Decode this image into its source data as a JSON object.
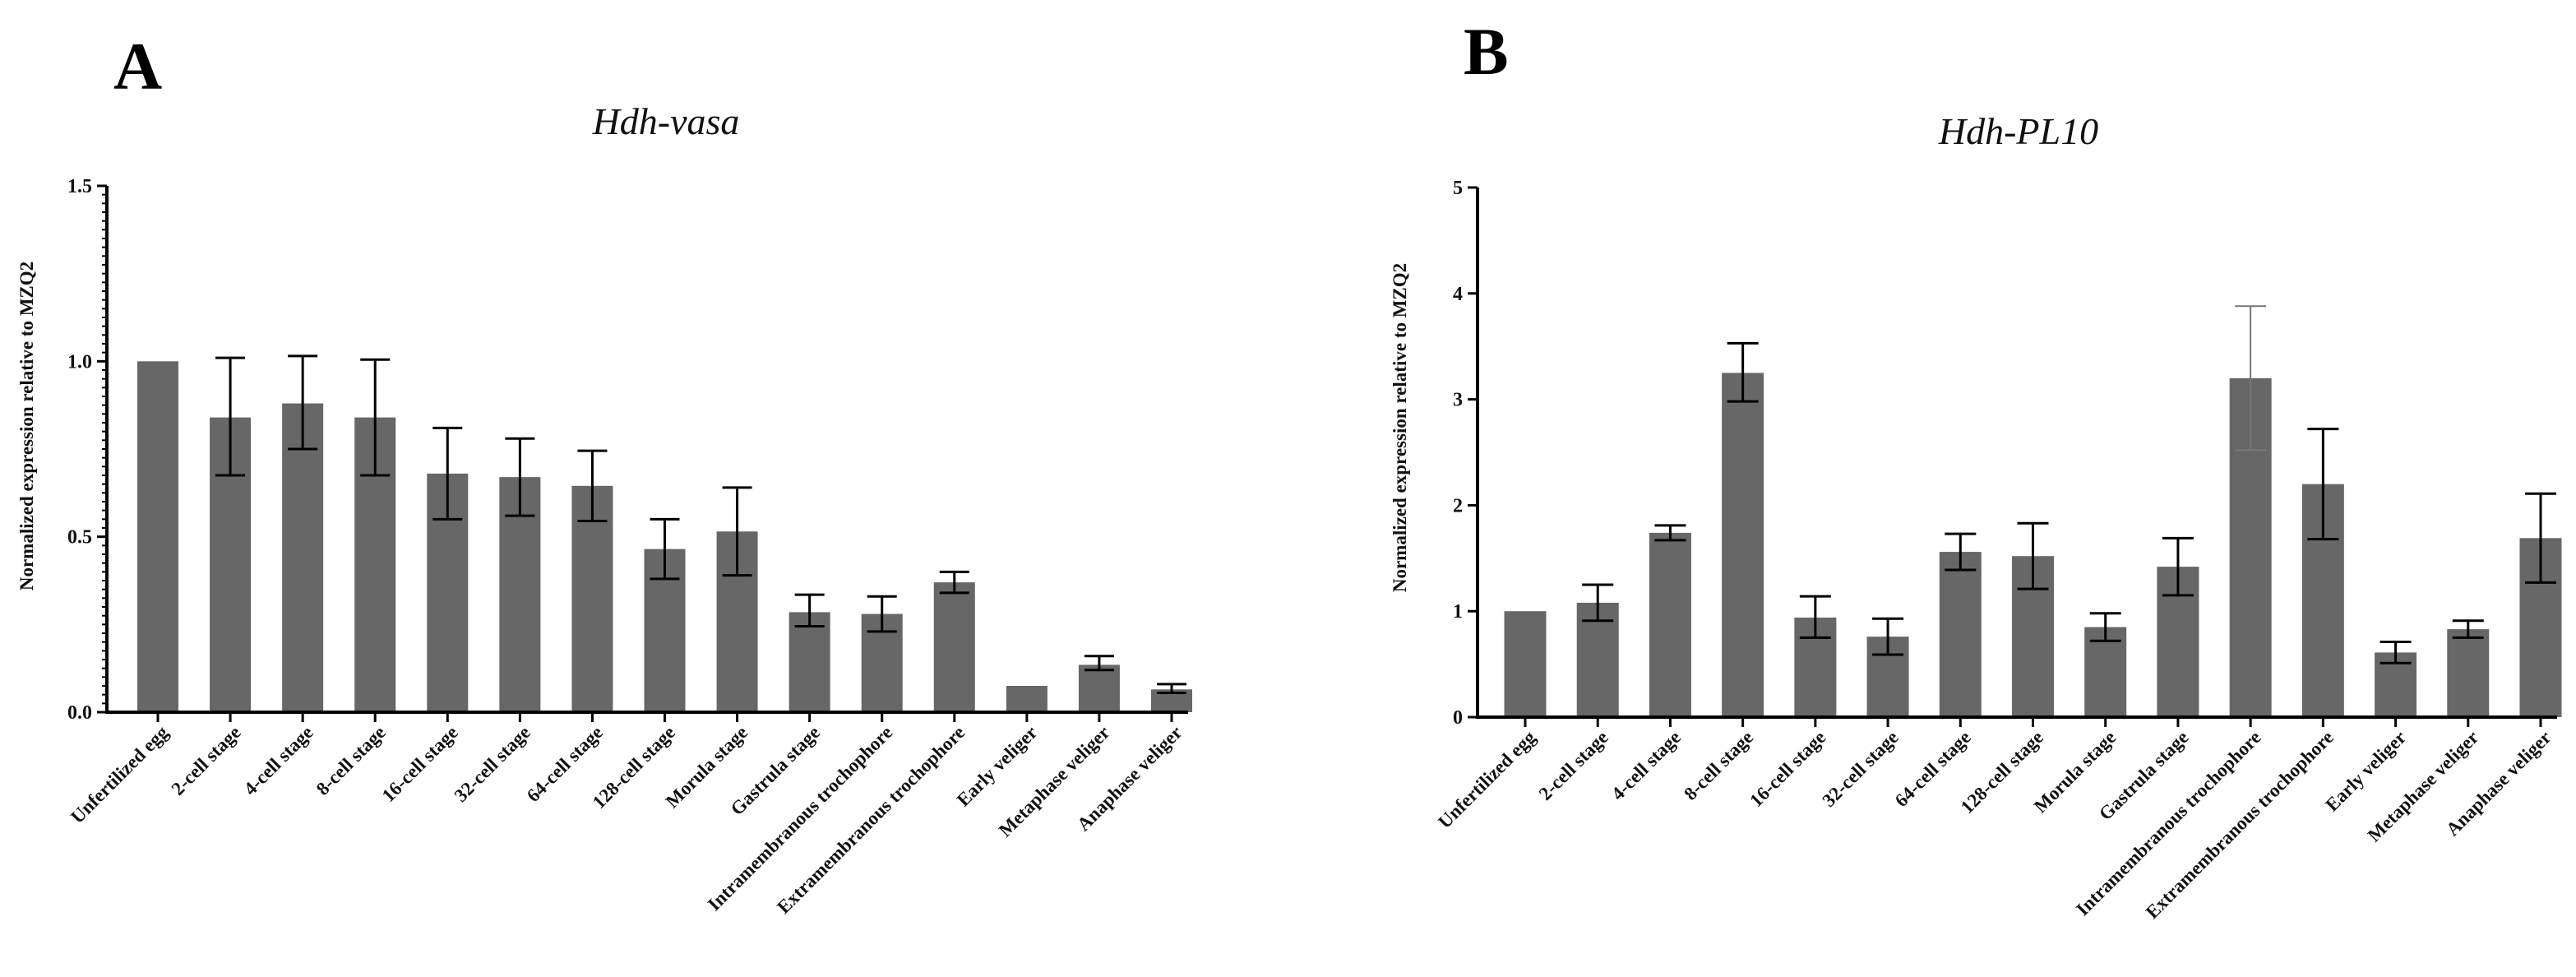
{
  "chart_data": [
    {
      "type": "bar",
      "panel": "A",
      "title": "Hdh-vasa",
      "xlabel": "",
      "ylabel": "Normalized expression relative to MZQ2",
      "ylim": [
        0,
        1.5
      ],
      "yticks": [
        0,
        0.5,
        1.0,
        1.5
      ],
      "ytick_labels": [
        "0.0",
        "0.5",
        "1.0",
        "1.5"
      ],
      "minor_ticks": true,
      "categories": [
        "Unfertilized egg",
        "2-cell stage",
        "4-cell stage",
        "8-cell stage",
        "16-cell stage",
        "32-cell stage",
        "64-cell stage",
        "128-cell stage",
        "Morula stage",
        "Gastrula stage",
        "Intramembranous trochophore",
        "Extramembranous trochophore",
        "Early veliger",
        "Metaphase veliger",
        "Anaphase veliger"
      ],
      "values": [
        1.0,
        0.84,
        0.88,
        0.84,
        0.68,
        0.67,
        0.645,
        0.465,
        0.515,
        0.285,
        0.28,
        0.37,
        0.075,
        0.135,
        0.065
      ],
      "err_low": [
        0,
        0.165,
        0.13,
        0.165,
        0.13,
        0.11,
        0.1,
        0.085,
        0.125,
        0.04,
        0.05,
        0.03,
        0,
        0.015,
        0.01
      ],
      "err_high": [
        0,
        0.17,
        0.135,
        0.165,
        0.13,
        0.11,
        0.1,
        0.085,
        0.125,
        0.05,
        0.05,
        0.03,
        0,
        0.025,
        0.015
      ]
    },
    {
      "type": "bar",
      "panel": "B",
      "title": "Hdh-PL10",
      "xlabel": "",
      "ylabel": "Normalized expression relative to MZQ2",
      "ylim": [
        0,
        5
      ],
      "yticks": [
        0,
        1,
        2,
        3,
        4,
        5
      ],
      "ytick_labels": [
        "0",
        "1",
        "2",
        "3",
        "4",
        "5"
      ],
      "minor_ticks": false,
      "categories": [
        "Unfertilized egg",
        "2-cell stage",
        "4-cell stage",
        "8-cell stage",
        "16-cell stage",
        "32-cell stage",
        "64-cell stage",
        "128-cell stage",
        "Morula stage",
        "Gastrula stage",
        "Intramembranous trochophore",
        "Extramembranous trochophore",
        "Early veliger",
        "Metaphase veliger",
        "Anaphase veliger"
      ],
      "values": [
        1.0,
        1.08,
        1.74,
        3.25,
        0.94,
        0.76,
        1.56,
        1.52,
        0.85,
        1.42,
        3.2,
        2.2,
        0.61,
        0.83,
        1.69
      ],
      "err_low": [
        0,
        0.17,
        0.07,
        0.27,
        0.19,
        0.17,
        0.17,
        0.31,
        0.13,
        0.27,
        0.68,
        0.52,
        0.1,
        0.08,
        0.42
      ],
      "err_high": [
        0,
        0.17,
        0.07,
        0.28,
        0.2,
        0.17,
        0.17,
        0.31,
        0.13,
        0.27,
        0.68,
        0.52,
        0.1,
        0.08,
        0.42
      ]
    }
  ]
}
